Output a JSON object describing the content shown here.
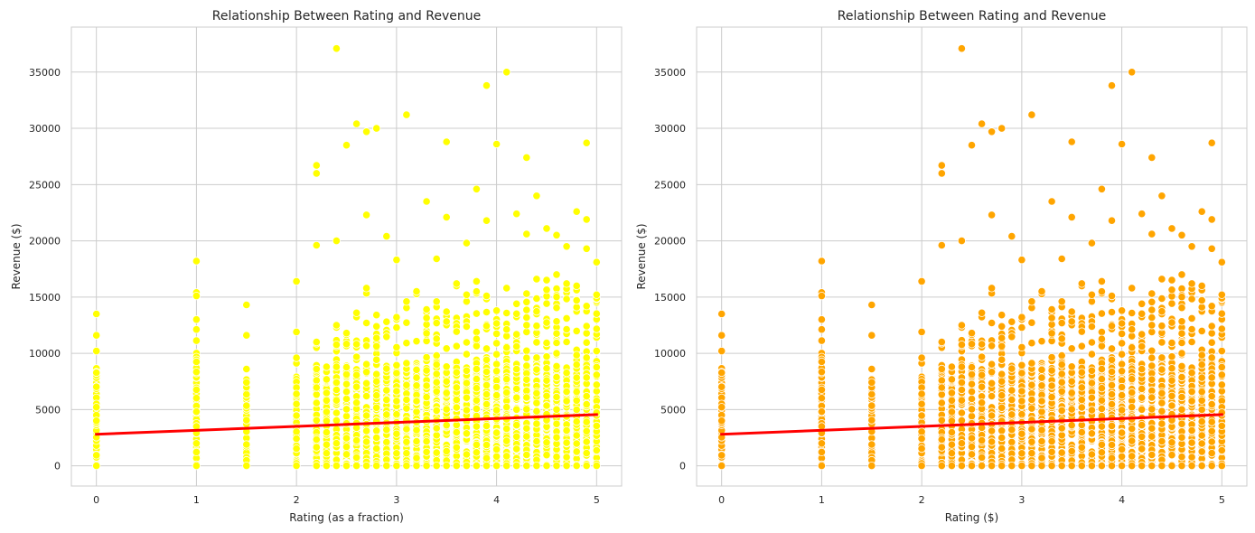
{
  "chart_data": [
    {
      "type": "scatter",
      "title": "Relationship Between Rating and Revenue",
      "xlabel": "Rating (as a fraction)",
      "ylabel": "Revenue ($)",
      "xlim": [
        -0.25,
        5.25
      ],
      "ylim": [
        -1800,
        39000
      ],
      "xticks": [
        0,
        1,
        2,
        3,
        4,
        5
      ],
      "yticks": [
        0,
        5000,
        10000,
        15000,
        20000,
        25000,
        30000,
        35000
      ],
      "grid": true,
      "marker_color": "#ffff00",
      "regression_line": {
        "color": "#ff0000",
        "x": [
          0,
          5
        ],
        "y": [
          2800,
          4550
        ]
      },
      "highlight_points": [
        [
          0,
          13500
        ],
        [
          0,
          11600
        ],
        [
          1,
          18200
        ],
        [
          1,
          15400
        ],
        [
          1,
          15100
        ],
        [
          1.5,
          14300
        ],
        [
          1.5,
          11600
        ],
        [
          2,
          16400
        ],
        [
          2,
          11900
        ],
        [
          2.2,
          26700
        ],
        [
          2.2,
          26000
        ],
        [
          2.2,
          19600
        ],
        [
          2.4,
          37100
        ],
        [
          2.4,
          20000
        ],
        [
          2.5,
          28500
        ],
        [
          2.6,
          30400
        ],
        [
          2.7,
          29700
        ],
        [
          2.7,
          22300
        ],
        [
          2.8,
          30000
        ],
        [
          2.9,
          20400
        ],
        [
          3,
          18300
        ],
        [
          3.1,
          31200
        ],
        [
          3.3,
          23500
        ],
        [
          3.4,
          18400
        ],
        [
          3.5,
          28800
        ],
        [
          3.5,
          22100
        ],
        [
          3.7,
          19800
        ],
        [
          3.8,
          24600
        ],
        [
          3.9,
          33800
        ],
        [
          3.9,
          21800
        ],
        [
          4,
          28600
        ],
        [
          4.1,
          35000
        ],
        [
          4.2,
          22400
        ],
        [
          4.3,
          27400
        ],
        [
          4.3,
          20600
        ],
        [
          4.4,
          24000
        ],
        [
          4.5,
          21100
        ],
        [
          4.6,
          20500
        ],
        [
          4.7,
          19500
        ],
        [
          4.8,
          22600
        ],
        [
          4.9,
          28700
        ],
        [
          4.9,
          21900
        ],
        [
          4.9,
          19300
        ],
        [
          5,
          18100
        ],
        [
          5,
          15200
        ]
      ],
      "dense_columns": [
        {
          "x": 0,
          "max": 10200
        },
        {
          "x": 1,
          "max": 13000
        },
        {
          "x": 1.5,
          "max": 8600
        },
        {
          "x": 2,
          "max": 9600
        },
        {
          "x": 2.2,
          "max": 11000
        },
        {
          "x": 2.3,
          "max": 8800
        },
        {
          "x": 2.4,
          "max": 12500
        },
        {
          "x": 2.5,
          "max": 11800
        },
        {
          "x": 2.6,
          "max": 13600
        },
        {
          "x": 2.7,
          "max": 15800
        },
        {
          "x": 2.8,
          "max": 13400
        },
        {
          "x": 2.9,
          "max": 12800
        },
        {
          "x": 3,
          "max": 13200
        },
        {
          "x": 3.1,
          "max": 14600
        },
        {
          "x": 3.2,
          "max": 15500
        },
        {
          "x": 3.3,
          "max": 13900
        },
        {
          "x": 3.4,
          "max": 14600
        },
        {
          "x": 3.5,
          "max": 13700
        },
        {
          "x": 3.6,
          "max": 16200
        },
        {
          "x": 3.7,
          "max": 15200
        },
        {
          "x": 3.8,
          "max": 16400
        },
        {
          "x": 3.9,
          "max": 15100
        },
        {
          "x": 4,
          "max": 13800
        },
        {
          "x": 4.1,
          "max": 15800
        },
        {
          "x": 4.2,
          "max": 14400
        },
        {
          "x": 4.3,
          "max": 15300
        },
        {
          "x": 4.4,
          "max": 16600
        },
        {
          "x": 4.5,
          "max": 16500
        },
        {
          "x": 4.6,
          "max": 17000
        },
        {
          "x": 4.7,
          "max": 16200
        },
        {
          "x": 4.8,
          "max": 16000
        },
        {
          "x": 4.9,
          "max": 14200
        },
        {
          "x": 5,
          "max": 14900
        }
      ]
    },
    {
      "type": "scatter",
      "title": "Relationship Between Rating and Revenue",
      "xlabel": "Rating ($)",
      "ylabel": "Revenue ($)",
      "xlim": [
        -0.25,
        5.25
      ],
      "ylim": [
        -1800,
        39000
      ],
      "xticks": [
        0,
        1,
        2,
        3,
        4,
        5
      ],
      "yticks": [
        0,
        5000,
        10000,
        15000,
        20000,
        25000,
        30000,
        35000
      ],
      "grid": true,
      "marker_color": "#ffa500",
      "regression_line": {
        "color": "#ff0000",
        "x": [
          0,
          5
        ],
        "y": [
          2800,
          4550
        ]
      },
      "highlight_points": [
        [
          0,
          13500
        ],
        [
          0,
          11600
        ],
        [
          1,
          18200
        ],
        [
          1,
          15400
        ],
        [
          1,
          15100
        ],
        [
          1.5,
          14300
        ],
        [
          1.5,
          11600
        ],
        [
          2,
          16400
        ],
        [
          2,
          11900
        ],
        [
          2.2,
          26700
        ],
        [
          2.2,
          26000
        ],
        [
          2.2,
          19600
        ],
        [
          2.4,
          37100
        ],
        [
          2.4,
          20000
        ],
        [
          2.5,
          28500
        ],
        [
          2.6,
          30400
        ],
        [
          2.7,
          29700
        ],
        [
          2.7,
          22300
        ],
        [
          2.8,
          30000
        ],
        [
          2.9,
          20400
        ],
        [
          3,
          18300
        ],
        [
          3.1,
          31200
        ],
        [
          3.3,
          23500
        ],
        [
          3.4,
          18400
        ],
        [
          3.5,
          28800
        ],
        [
          3.5,
          22100
        ],
        [
          3.7,
          19800
        ],
        [
          3.8,
          24600
        ],
        [
          3.9,
          33800
        ],
        [
          3.9,
          21800
        ],
        [
          4,
          28600
        ],
        [
          4.1,
          35000
        ],
        [
          4.2,
          22400
        ],
        [
          4.3,
          27400
        ],
        [
          4.3,
          20600
        ],
        [
          4.4,
          24000
        ],
        [
          4.5,
          21100
        ],
        [
          4.6,
          20500
        ],
        [
          4.7,
          19500
        ],
        [
          4.8,
          22600
        ],
        [
          4.9,
          28700
        ],
        [
          4.9,
          21900
        ],
        [
          4.9,
          19300
        ],
        [
          5,
          18100
        ],
        [
          5,
          15200
        ]
      ],
      "dense_columns": [
        {
          "x": 0,
          "max": 10200
        },
        {
          "x": 1,
          "max": 13000
        },
        {
          "x": 1.5,
          "max": 8600
        },
        {
          "x": 2,
          "max": 9600
        },
        {
          "x": 2.2,
          "max": 11000
        },
        {
          "x": 2.3,
          "max": 8800
        },
        {
          "x": 2.4,
          "max": 12500
        },
        {
          "x": 2.5,
          "max": 11800
        },
        {
          "x": 2.6,
          "max": 13600
        },
        {
          "x": 2.7,
          "max": 15800
        },
        {
          "x": 2.8,
          "max": 13400
        },
        {
          "x": 2.9,
          "max": 12800
        },
        {
          "x": 3,
          "max": 13200
        },
        {
          "x": 3.1,
          "max": 14600
        },
        {
          "x": 3.2,
          "max": 15500
        },
        {
          "x": 3.3,
          "max": 13900
        },
        {
          "x": 3.4,
          "max": 14600
        },
        {
          "x": 3.5,
          "max": 13700
        },
        {
          "x": 3.6,
          "max": 16200
        },
        {
          "x": 3.7,
          "max": 15200
        },
        {
          "x": 3.8,
          "max": 16400
        },
        {
          "x": 3.9,
          "max": 15100
        },
        {
          "x": 4,
          "max": 13800
        },
        {
          "x": 4.1,
          "max": 15800
        },
        {
          "x": 4.2,
          "max": 14400
        },
        {
          "x": 4.3,
          "max": 15300
        },
        {
          "x": 4.4,
          "max": 16600
        },
        {
          "x": 4.5,
          "max": 16500
        },
        {
          "x": 4.6,
          "max": 17000
        },
        {
          "x": 4.7,
          "max": 16200
        },
        {
          "x": 4.8,
          "max": 16000
        },
        {
          "x": 4.9,
          "max": 14200
        },
        {
          "x": 5,
          "max": 14900
        }
      ]
    }
  ]
}
